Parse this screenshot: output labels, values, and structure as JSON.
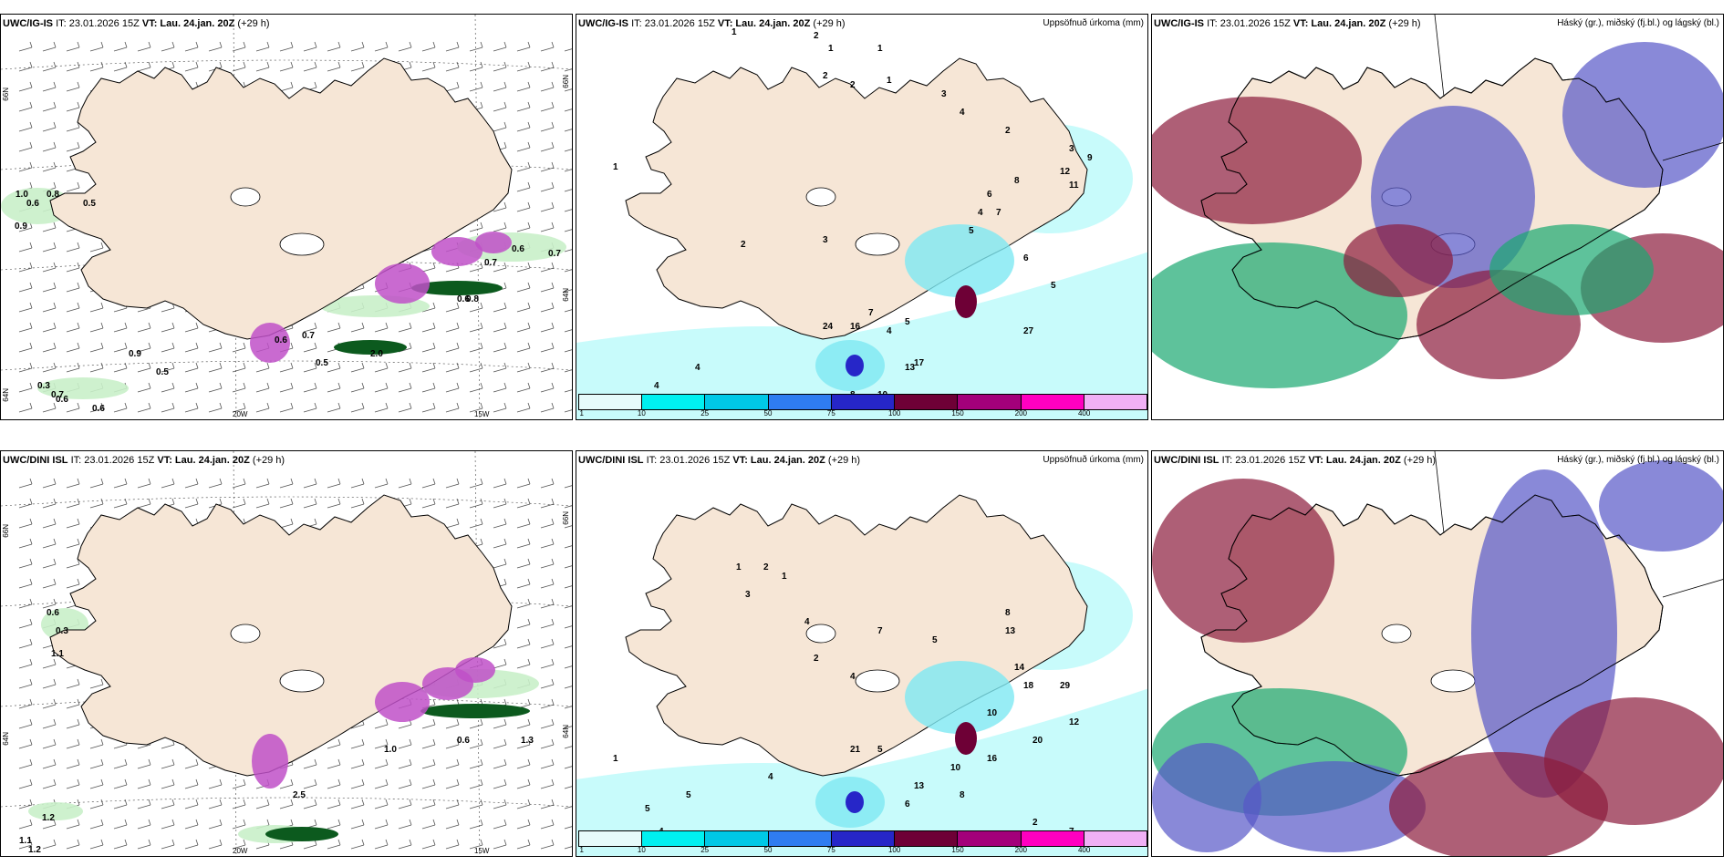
{
  "rows": [
    {
      "model": "UWC/IG-IS",
      "info": "IT: 23.01.2026 15Z",
      "vt_prefix": "VT:",
      "vt": "Lau. 24.jan. 20Z",
      "lead": "(+29 h)"
    },
    {
      "model": "UWC/DINI ISL",
      "info": "IT: 23.01.2026 15Z",
      "vt_prefix": "VT:",
      "vt": "Lau. 24.jan. 20Z",
      "lead": "(+29 h)"
    }
  ],
  "titles": {
    "precip": "Uppsöfnuð úrkoma (mm)",
    "clouds": "Háský (gr.), miðský (fj.bl.) og lágský (bl.)"
  },
  "axis_labels": {
    "lon_20": "20W",
    "lon_15": "15W",
    "lat_66": "66N",
    "lat_64": "64N",
    "lat_66_right": "66N",
    "lat_64_right": "64N"
  },
  "colorbar": {
    "ticks": [
      "1",
      "10",
      "25",
      "50",
      "75",
      "100",
      "150",
      "200",
      "400"
    ],
    "colors": [
      "#e6fbfb",
      "#00f0f0",
      "#00c8e6",
      "#2f7cf0",
      "#2626c8",
      "#6e0036",
      "#a3007a",
      "#ff00c0",
      "#f0b0f5"
    ]
  },
  "ice_values_top": [
    "1.0",
    "0.6",
    "0.8",
    "0.5",
    "0.6",
    "0.7",
    "0.7",
    "0.8",
    "0.6",
    "0.9",
    "0.5",
    "0.7",
    "2.0",
    "0.5",
    "0.6",
    "0.3",
    "0.7",
    "0.6",
    "0.6",
    "0.9"
  ],
  "ice_values_bottom": [
    "0.6",
    "0.3",
    "1.1",
    "1.3",
    "1.2",
    "1.1",
    "1.2",
    "0.6",
    "1.0",
    "2.5"
  ],
  "precip_top": [
    "1",
    "2",
    "1",
    "1",
    "2",
    "2",
    "1",
    "3",
    "4",
    "2",
    "3",
    "9",
    "12",
    "8",
    "6",
    "4",
    "5",
    "7",
    "11",
    "6",
    "24",
    "16",
    "7",
    "4",
    "5",
    "13",
    "17",
    "27",
    "8",
    "10",
    "7",
    "4",
    "4",
    "1",
    "2",
    "3",
    "5"
  ],
  "precip_bottom": [
    "1",
    "2",
    "3",
    "1",
    "4",
    "2",
    "4",
    "7",
    "5",
    "13",
    "8",
    "14",
    "18",
    "10",
    "29",
    "12",
    "20",
    "16",
    "13",
    "21",
    "5",
    "10",
    "8",
    "6",
    "4",
    "5",
    "5",
    "4",
    "1",
    "2",
    "7"
  ],
  "colors": {
    "land": "#f6e6d6",
    "ocean": "#ffffff",
    "precip_light": "#c8fbfb",
    "precip_mid": "#7ee8f2",
    "ice_light": "#c9f0c9",
    "ice_dark": "#0c5a1e",
    "magenta": "#c050c8",
    "cloud_high": "#8b1b3c",
    "cloud_mid": "#5757c8",
    "cloud_low": "#1aa870"
  }
}
